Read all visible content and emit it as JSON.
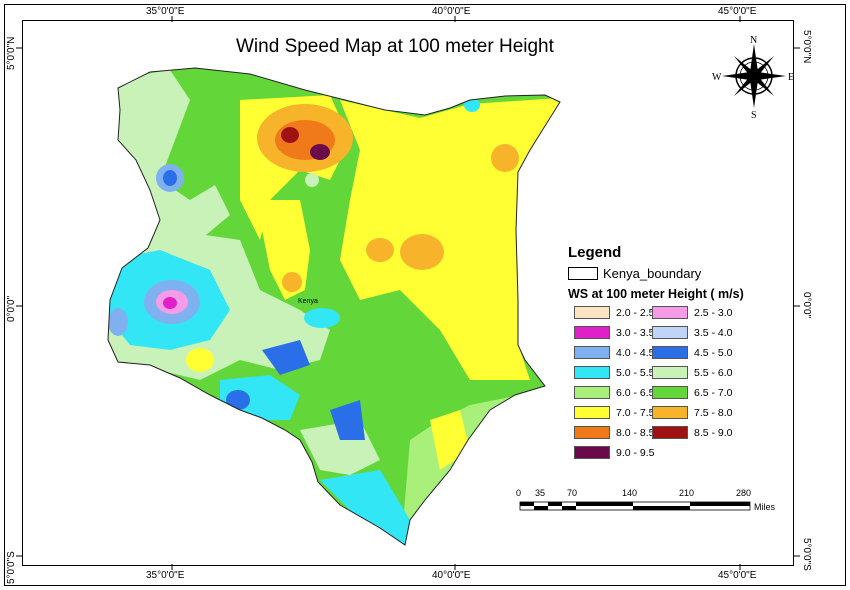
{
  "title": "Wind Speed Map at 100  meter Height",
  "axes": {
    "top_labels": [
      "35°0'0\"E",
      "40°0'0\"E",
      "45°0'0\"E"
    ],
    "bottom_labels": [
      "35°0'0\"E",
      "40°0'0\"E",
      "45°0'0\"E"
    ],
    "left_labels": [
      "5°0'0\"N",
      "0°0'0\"",
      "5°0'0\"S"
    ],
    "right_labels": [
      "5°0'0\"N",
      "0°0'0\"",
      "5°0'0\"S"
    ]
  },
  "compass": {
    "n": "N",
    "s": "S",
    "e": "E",
    "w": "W"
  },
  "map": {
    "region_label": "Kenya",
    "colors": {
      "base_green": "#63d63a",
      "yellow": "#ffff33",
      "light_green": "#c8f2b8",
      "cyan": "#33e6f5",
      "blue": "#2b6fe8",
      "orange": "#f7b42a",
      "dark_orange": "#f07a1a",
      "dark_red": "#a01212",
      "magenta": "#e020c8"
    }
  },
  "legend": {
    "title": "Legend",
    "boundary_label": "Kenya_boundary",
    "subtitle": "WS at 100 meter Height ( m/s)",
    "items": [
      {
        "label": "2.0 - 2.5",
        "color": "#fbe4c2"
      },
      {
        "label": "2.5 - 3.0",
        "color": "#f59be8"
      },
      {
        "label": "3.0 - 3.5",
        "color": "#e020c8"
      },
      {
        "label": "3.5 - 4.0",
        "color": "#c0d4f7"
      },
      {
        "label": "4.0 - 4.5",
        "color": "#7fb1f1"
      },
      {
        "label": "4.5 - 5.0",
        "color": "#2b6fe8"
      },
      {
        "label": "5.0 - 5.5",
        "color": "#33e6f5"
      },
      {
        "label": "5.5 - 6.0",
        "color": "#c8f2b8"
      },
      {
        "label": "6.0 - 6.5",
        "color": "#a8f07a"
      },
      {
        "label": "6.5 - 7.0",
        "color": "#63d63a"
      },
      {
        "label": "7.0 - 7.5",
        "color": "#ffff33"
      },
      {
        "label": "7.5 - 8.0",
        "color": "#f7b42a"
      },
      {
        "label": "8.0 - 8.5",
        "color": "#f07a1a"
      },
      {
        "label": "8.5 - 9.0",
        "color": "#a01212"
      },
      {
        "label": "9.0 - 9.5",
        "color": "#6b0a4a"
      }
    ]
  },
  "scale_bar": {
    "ticks": [
      "0",
      "35",
      "70",
      "140",
      "210",
      "280"
    ],
    "unit": "Miles"
  }
}
